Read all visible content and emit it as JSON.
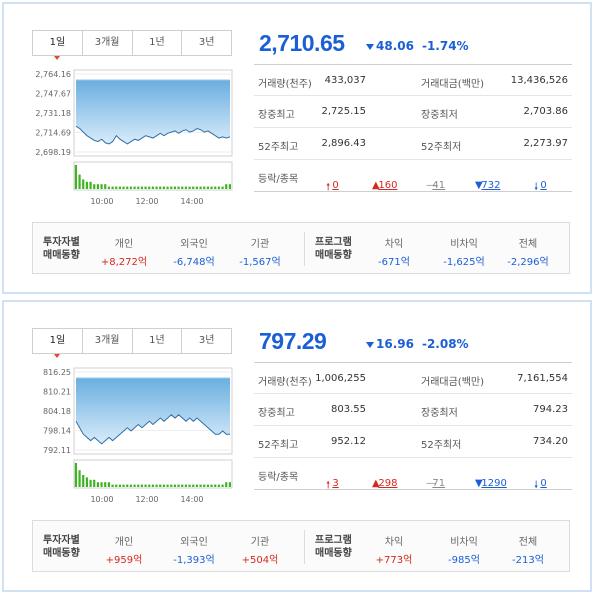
{
  "panels": [
    {
      "tabs": [
        "1일",
        "3개월",
        "1년",
        "3년"
      ],
      "active_tab": 0,
      "price": "2,710.65",
      "change": "48.06",
      "change_pct": "-1.74%",
      "info": [
        {
          "l1": "거래량(천주)",
          "v1": "433,037",
          "l2": "거래대금(백만)",
          "v2": "13,436,526"
        },
        {
          "l1": "장중최고",
          "v1": "2,725.15",
          "l2": "장중최저",
          "v2": "2,703.86"
        },
        {
          "l1": "52주최고",
          "v1": "2,896.43",
          "l2": "52주최저",
          "v2": "2,273.97"
        }
      ],
      "breadth": {
        "label": "등락/종목",
        "up_limit": "0",
        "up": "160",
        "flat": "41",
        "down": "732",
        "down_limit": "0"
      },
      "investor": {
        "title": [
          "투자자별",
          "매매동향"
        ],
        "cols": [
          {
            "h": "개인",
            "v": "+8,272억",
            "sign": "pos"
          },
          {
            "h": "외국인",
            "v": "-6,748억",
            "sign": "neg"
          },
          {
            "h": "기관",
            "v": "-1,567억",
            "sign": "neg"
          }
        ]
      },
      "program": {
        "title": [
          "프로그램",
          "매매동향"
        ],
        "cols": [
          {
            "h": "차익",
            "v": "-671억",
            "sign": "neg"
          },
          {
            "h": "비차익",
            "v": "-1,625억",
            "sign": "neg"
          },
          {
            "h": "전체",
            "v": "-2,296억",
            "sign": "neg"
          }
        ]
      },
      "chart": {
        "y_ticks": [
          "2,764.16",
          "2,747.67",
          "2,731.18",
          "2,714.69",
          "2,698.19"
        ],
        "x_ticks": [
          "10:00",
          "12:00",
          "14:00"
        ],
        "ylim": [
          2698.19,
          2764.16
        ],
        "line": [
          2720,
          2718,
          2715,
          2712,
          2710,
          2708,
          2707,
          2709,
          2706,
          2705,
          2707,
          2712,
          2709,
          2707,
          2705,
          2707,
          2709,
          2708,
          2710,
          2712,
          2711,
          2710,
          2712,
          2714,
          2712,
          2714,
          2715,
          2716,
          2714,
          2716,
          2717,
          2715,
          2716,
          2718,
          2717,
          2715,
          2716,
          2714,
          2712,
          2710,
          2711,
          2710,
          2711
        ],
        "volume": [
          10,
          6,
          4,
          3,
          3,
          2,
          2,
          2,
          2,
          1,
          1,
          1,
          1,
          1,
          1,
          1,
          1,
          1,
          1,
          1,
          1,
          1,
          1,
          1,
          1,
          1,
          1,
          1,
          1,
          1,
          1,
          1,
          1,
          1,
          1,
          1,
          1,
          1,
          1,
          1,
          1,
          2,
          2
        ]
      }
    },
    {
      "tabs": [
        "1일",
        "3개월",
        "1년",
        "3년"
      ],
      "active_tab": 0,
      "price": "797.29",
      "change": "16.96",
      "change_pct": "-2.08%",
      "info": [
        {
          "l1": "거래량(천주)",
          "v1": "1,006,255",
          "l2": "거래대금(백만)",
          "v2": "7,161,554"
        },
        {
          "l1": "장중최고",
          "v1": "803.55",
          "l2": "장중최저",
          "v2": "794.23"
        },
        {
          "l1": "52주최고",
          "v1": "952.12",
          "l2": "52주최저",
          "v2": "734.20"
        }
      ],
      "breadth": {
        "label": "등락/종목",
        "up_limit": "3",
        "up": "298",
        "flat": "71",
        "down": "1290",
        "down_limit": "0"
      },
      "investor": {
        "title": [
          "투자자별",
          "매매동향"
        ],
        "cols": [
          {
            "h": "개인",
            "v": "+959억",
            "sign": "pos"
          },
          {
            "h": "외국인",
            "v": "-1,393억",
            "sign": "neg"
          },
          {
            "h": "기관",
            "v": "+504억",
            "sign": "pos"
          }
        ]
      },
      "program": {
        "title": [
          "프로그램",
          "매매동향"
        ],
        "cols": [
          {
            "h": "차익",
            "v": "+773억",
            "sign": "pos"
          },
          {
            "h": "비차익",
            "v": "-985억",
            "sign": "neg"
          },
          {
            "h": "전체",
            "v": "-213억",
            "sign": "neg"
          }
        ]
      },
      "chart": {
        "y_ticks": [
          "816.25",
          "810.21",
          "804.18",
          "798.14",
          "792.11"
        ],
        "x_ticks": [
          "10:00",
          "12:00",
          "14:00"
        ],
        "ylim": [
          792.11,
          816.25
        ],
        "line": [
          801,
          799,
          797,
          796,
          795,
          796,
          795,
          794,
          795,
          796,
          795,
          796,
          797,
          798,
          799,
          798,
          799,
          800,
          799,
          800,
          801,
          800,
          801,
          802,
          801,
          802,
          803,
          802,
          803,
          802,
          801,
          802,
          801,
          802,
          801,
          800,
          799,
          798,
          797,
          797,
          798,
          797,
          797
        ],
        "volume": [
          10,
          7,
          5,
          4,
          3,
          3,
          2,
          2,
          2,
          2,
          1,
          1,
          1,
          1,
          1,
          1,
          1,
          1,
          1,
          1,
          1,
          1,
          1,
          1,
          1,
          1,
          1,
          1,
          1,
          1,
          1,
          1,
          1,
          1,
          1,
          1,
          1,
          1,
          1,
          1,
          1,
          2,
          2
        ]
      }
    }
  ],
  "colors": {
    "up": "#d7281d",
    "down": "#1a5fd6",
    "chart_fill_top": "#6aaee0",
    "chart_fill_bottom": "#d9ecfa",
    "volume": "#3cb521"
  }
}
